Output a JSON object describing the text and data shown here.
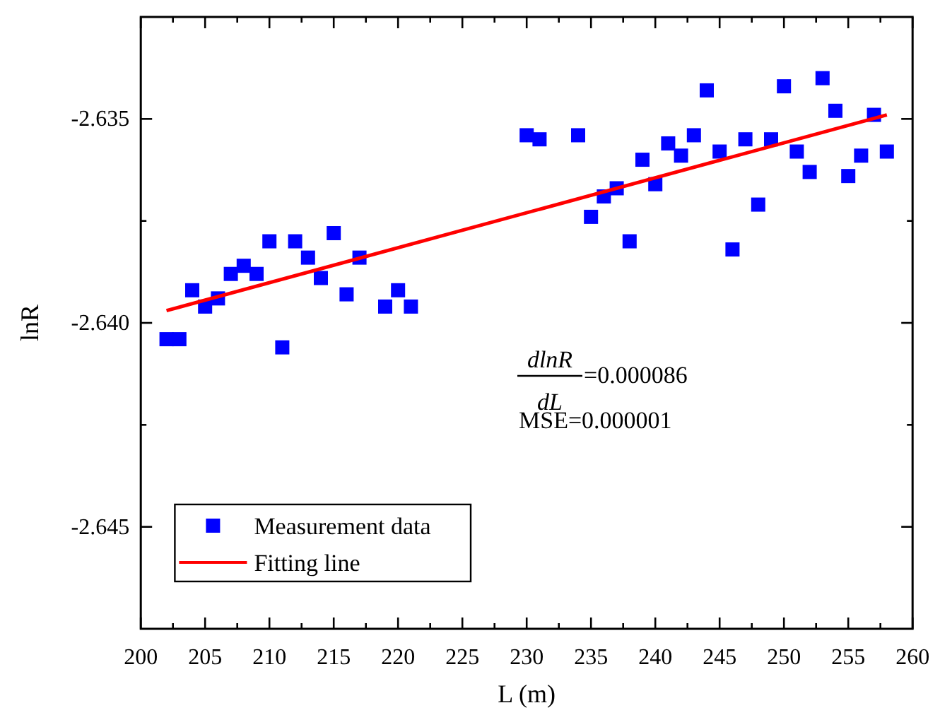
{
  "chart_data": {
    "type": "scatter",
    "xlabel": "L (m)",
    "ylabel": "lnR",
    "xlim": [
      200,
      260
    ],
    "xticks": [
      200,
      205,
      210,
      215,
      220,
      225,
      230,
      235,
      240,
      245,
      250,
      255,
      260
    ],
    "ylim": [
      -2.6475,
      -2.6325
    ],
    "yticks": [
      -2.635,
      {
        "value": -2.64,
        "label": "-2.640"
      },
      -2.645
    ],
    "grid": false,
    "legend": "bottom left",
    "annotations": [
      "dlnR",
      "dL",
      "=0.000086",
      "MSE=0.000001"
    ],
    "series": [
      {
        "name": "Measurement data",
        "marker": "square",
        "color": "#0000ff",
        "x": [
          202,
          203,
          204,
          205,
          206,
          207,
          208,
          209,
          210,
          211,
          212,
          213,
          214,
          215,
          216,
          217,
          219,
          220,
          221,
          230,
          231,
          234,
          235,
          236,
          237,
          238,
          239,
          240,
          241,
          242,
          243,
          244,
          245,
          246,
          247,
          248,
          249,
          250,
          251,
          252,
          253,
          254,
          255,
          256,
          257,
          258
        ],
        "values": [
          -2.6404,
          -2.6404,
          -2.6392,
          -2.6396,
          -2.6394,
          -2.6388,
          -2.6386,
          -2.6388,
          -2.638,
          -2.6406,
          -2.638,
          -2.6384,
          -2.6389,
          -2.6378,
          -2.6393,
          -2.6384,
          -2.6396,
          -2.6392,
          -2.6396,
          -2.6354,
          -2.6355,
          -2.6354,
          -2.6374,
          -2.6369,
          -2.6367,
          -2.638,
          -2.636,
          -2.6366,
          -2.6356,
          -2.6359,
          -2.6354,
          -2.6343,
          -2.6358,
          -2.6382,
          -2.6355,
          -2.6371,
          -2.6355,
          -2.6342,
          -2.6358,
          -2.6363,
          -2.634,
          -2.6348,
          -2.6364,
          -2.6359,
          -2.6349,
          -2.6358
        ]
      },
      {
        "name": "Fitting line",
        "type": "line",
        "marker": "none",
        "line_style": "solid",
        "color": "#ff0000",
        "x": [
          202,
          258
        ],
        "values": [
          -2.6397,
          -2.6349
        ]
      }
    ]
  }
}
